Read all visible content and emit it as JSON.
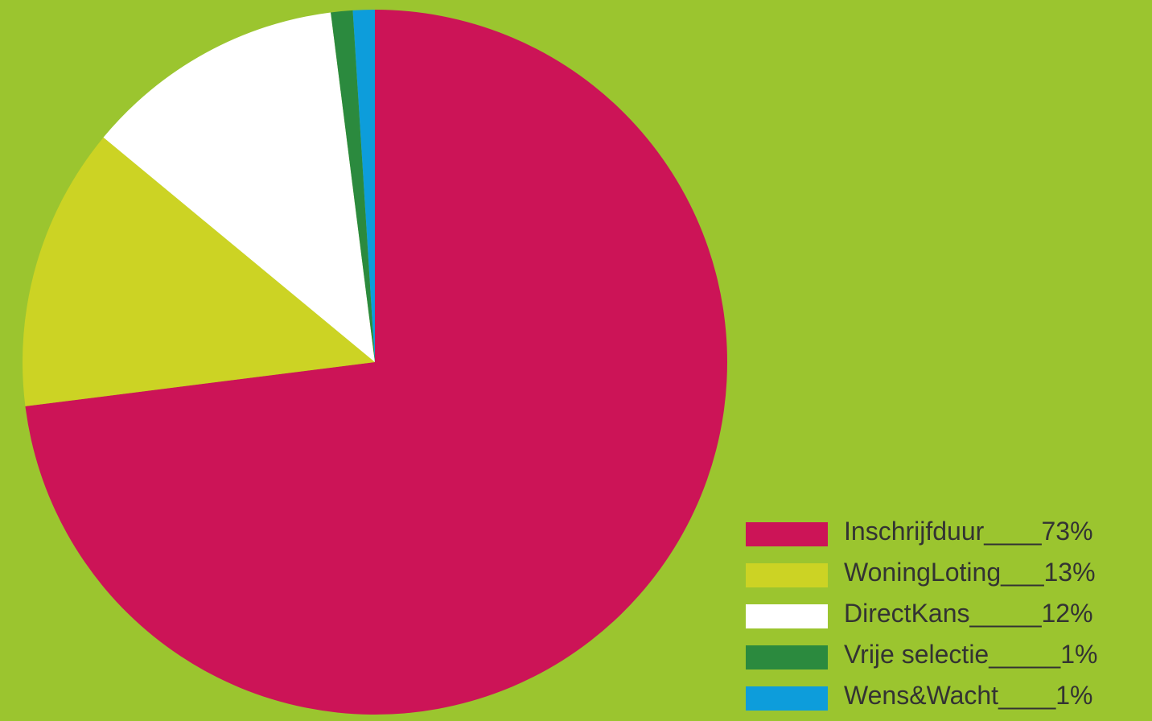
{
  "chart_data": {
    "type": "pie",
    "slices": [
      {
        "label": "Inschrijfduur",
        "legend_text": "Inschrijfduur____73%",
        "value": 73,
        "color": "#cc1457"
      },
      {
        "label": "WoningLoting",
        "legend_text": "WoningLoting___13%",
        "value": 13,
        "color": "#ccd324"
      },
      {
        "label": "DirectKans",
        "legend_text": "DirectKans_____12%",
        "value": 12,
        "color": "#ffffff"
      },
      {
        "label": "Vrije selectie",
        "legend_text": "Vrije selectie_____1%",
        "value": 1,
        "color": "#2b8a3e"
      },
      {
        "label": "Wens&Wacht",
        "legend_text": "Wens&Wacht____1%",
        "value": 1,
        "color": "#0d9ddb"
      }
    ],
    "start": "12 o'clock",
    "direction": "clockwise",
    "legend_position": "bottom-right",
    "background_color": "#9bc52f"
  }
}
